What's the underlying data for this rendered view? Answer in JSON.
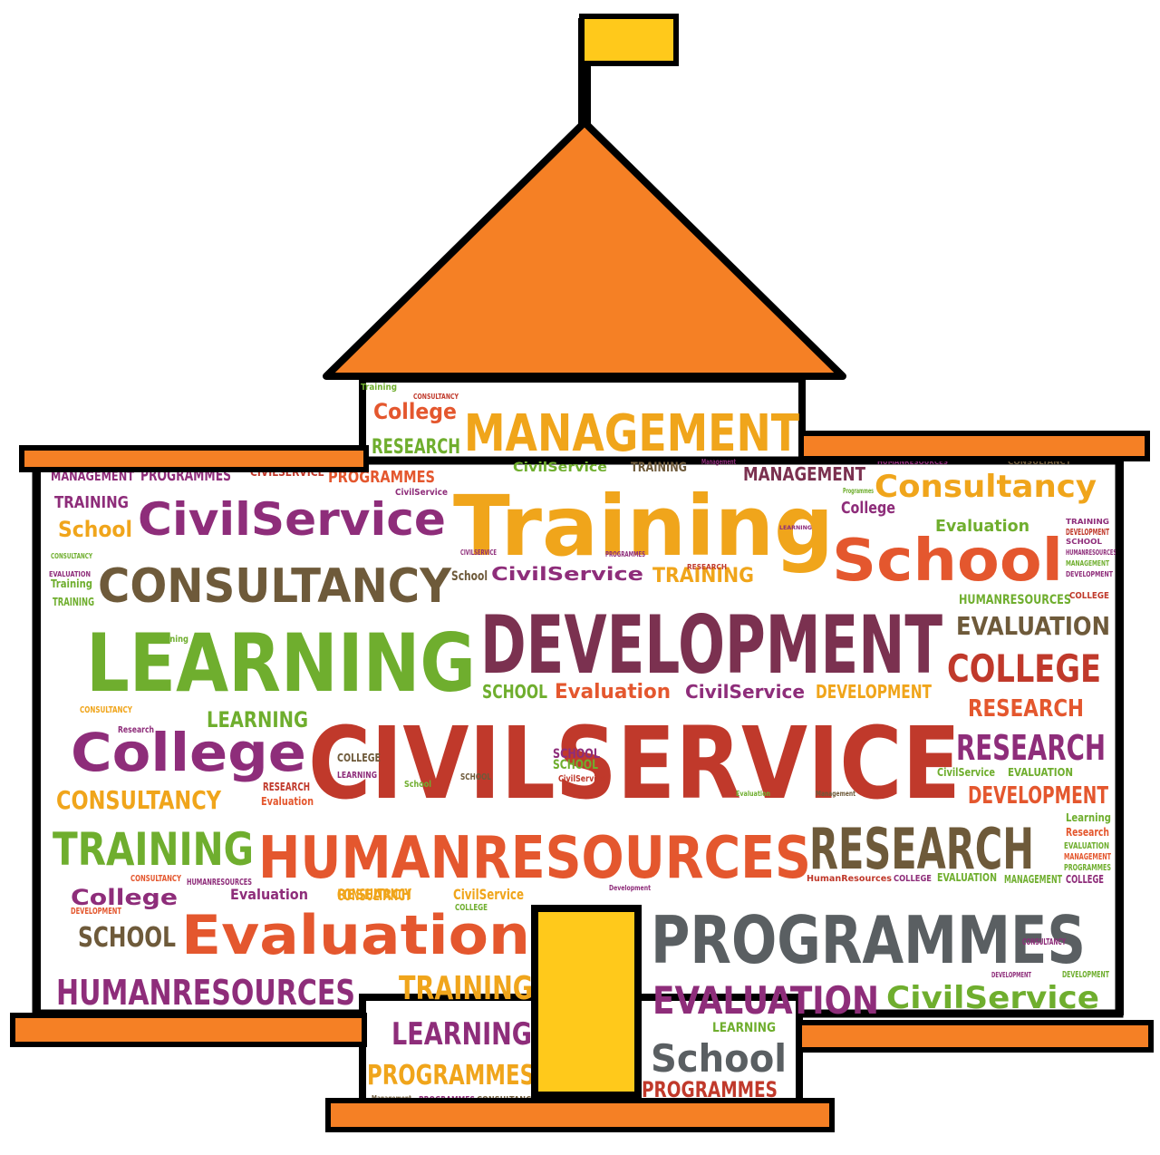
{
  "colors": {
    "orange": "#F58025",
    "yellow": "#FFC91B",
    "outline": "#000000",
    "word_palette": [
      "#F0A51B",
      "#C0392B",
      "#8E2D7A",
      "#6FAE2E",
      "#6E5A3A",
      "#E4572E",
      "#5A5F62"
    ]
  },
  "words": [
    {
      "text": "Training",
      "color": "#F0A51B"
    },
    {
      "text": "CIVILSERVICE",
      "color": "#C0392B"
    },
    {
      "text": "DEVELOPMENT",
      "color": "#7B3150"
    },
    {
      "text": "LEARNING",
      "color": "#6FAE2E"
    },
    {
      "text": "HUMANRESOURCES",
      "color": "#E4572E"
    },
    {
      "text": "PROGRAMMES",
      "color": "#5A5F62"
    },
    {
      "text": "MANAGEMENT",
      "color": "#F0A51B"
    },
    {
      "text": "CONSULTANCY",
      "color": "#6E5A3A"
    },
    {
      "text": "School",
      "color": "#E4572E"
    },
    {
      "text": "CivilService",
      "color": "#8E2D7A"
    },
    {
      "text": "College",
      "color": "#8E2D7A"
    },
    {
      "text": "Evaluation",
      "color": "#E4572E"
    },
    {
      "text": "RESEARCH",
      "color": "#6E5A3A"
    },
    {
      "text": "TRAINING",
      "color": "#6FAE2E"
    },
    {
      "text": "COLLEGE",
      "color": "#C0392B"
    },
    {
      "text": "RESEARCH",
      "color": "#8E2D7A"
    },
    {
      "text": "EVALUATION",
      "color": "#8E2D7A"
    },
    {
      "text": "HUMANRESOURCES",
      "color": "#8E2D7A"
    },
    {
      "text": "CivilService",
      "color": "#6FAE2E"
    },
    {
      "text": "Consultancy",
      "color": "#F0A51B"
    },
    {
      "text": "College",
      "color": "#E4572E"
    },
    {
      "text": "School",
      "color": "#5A5F62"
    },
    {
      "text": "TRAINING",
      "color": "#F0A51B"
    },
    {
      "text": "LEARNING",
      "color": "#8E2D7A"
    },
    {
      "text": "PROGRAMMES",
      "color": "#F0A51B"
    },
    {
      "text": "CONSULTANCY",
      "color": "#F0A51B"
    },
    {
      "text": "SCHOOL",
      "color": "#6E5A3A"
    },
    {
      "text": "EVALUATION",
      "color": "#6E5A3A"
    },
    {
      "text": "RESEARCH",
      "color": "#E4572E"
    },
    {
      "text": "DEVELOPMENT",
      "color": "#E4572E"
    },
    {
      "text": "College",
      "color": "#8E2D7A"
    },
    {
      "text": "RESEARCH",
      "color": "#6FAE2E"
    },
    {
      "text": "MANAGEMENT",
      "color": "#7B3150"
    },
    {
      "text": "CivilService",
      "color": "#8E2D7A"
    },
    {
      "text": "TRAINING",
      "color": "#F0A51B"
    },
    {
      "text": "Evaluation",
      "color": "#6FAE2E"
    },
    {
      "text": "LEARNING",
      "color": "#6FAE2E"
    },
    {
      "text": "CivilService",
      "color": "#8E2D7A"
    },
    {
      "text": "Evaluation",
      "color": "#E4572E"
    },
    {
      "text": "SCHOOL",
      "color": "#6FAE2E"
    },
    {
      "text": "DEVELOPMENT",
      "color": "#F0A51B"
    },
    {
      "text": "CONSULTANCY",
      "color": "#F0A51B"
    },
    {
      "text": "College",
      "color": "#8E2D7A"
    },
    {
      "text": "School",
      "color": "#F0A51B"
    },
    {
      "text": "TRAINING",
      "color": "#8E2D7A"
    },
    {
      "text": "PROGRAMMES",
      "color": "#8E2D7A"
    },
    {
      "text": "CIVILSERVICE",
      "color": "#C0392B"
    },
    {
      "text": "PROGRAMMES",
      "color": "#E4572E"
    },
    {
      "text": "PROGRAMMES",
      "color": "#C0392B"
    },
    {
      "text": "MANAGEMENT",
      "color": "#8E2D7A"
    },
    {
      "text": "HUMANRESOURCES",
      "color": "#8E2D7A"
    },
    {
      "text": "Evaluation",
      "color": "#8E2D7A"
    },
    {
      "text": "RESEARCH",
      "color": "#F0A51B"
    },
    {
      "text": "CivilService",
      "color": "#F0A51B"
    },
    {
      "text": "LEARNING",
      "color": "#6FAE2E"
    },
    {
      "text": "SCHOOL",
      "color": "#6FAE2E"
    },
    {
      "text": "CivilService",
      "color": "#6FAE2E"
    },
    {
      "text": "TRAINING",
      "color": "#6E5A3A"
    },
    {
      "text": "School",
      "color": "#6E5A3A"
    },
    {
      "text": "Training",
      "color": "#6FAE2E"
    },
    {
      "text": "TRAINING",
      "color": "#6FAE2E"
    },
    {
      "text": "COLLEGE",
      "color": "#6E5A3A"
    },
    {
      "text": "SCHOOL",
      "color": "#8E2D7A"
    },
    {
      "text": "HUMANRESOURCES",
      "color": "#6FAE2E"
    },
    {
      "text": "CivilService",
      "color": "#6FAE2E"
    },
    {
      "text": "EVALUATION",
      "color": "#6FAE2E"
    },
    {
      "text": "CONSULTANCY",
      "color": "#F0A51B"
    },
    {
      "text": "DEVELOPMENT",
      "color": "#E4572E"
    },
    {
      "text": "Learning",
      "color": "#6FAE2E"
    },
    {
      "text": "Research",
      "color": "#E4572E"
    },
    {
      "text": "EVALUATION",
      "color": "#6FAE2E"
    },
    {
      "text": "MANAGEMENT",
      "color": "#E4572E"
    },
    {
      "text": "PROGRAMMES",
      "color": "#6FAE2E"
    },
    {
      "text": "HumanResources",
      "color": "#C0392B"
    },
    {
      "text": "COLLEGE",
      "color": "#8E2D7A"
    },
    {
      "text": "EVALUATION",
      "color": "#6FAE2E"
    },
    {
      "text": "MANAGEMENT",
      "color": "#6FAE2E"
    },
    {
      "text": "COLLEGE",
      "color": "#8E2D7A"
    },
    {
      "text": "CONSULTANCY",
      "color": "#8E2D7A"
    },
    {
      "text": "DEVELOPMENT",
      "color": "#8E2D7A"
    },
    {
      "text": "DEVELOPMENT",
      "color": "#6FAE2E"
    },
    {
      "text": "CONSULTANCY",
      "color": "#E4572E"
    },
    {
      "text": "DEVELOPMENT",
      "color": "#C0392B"
    },
    {
      "text": "Research",
      "color": "#8E2D7A"
    },
    {
      "text": "LEARNING",
      "color": "#8E2D7A"
    },
    {
      "text": "COLLEGE",
      "color": "#C0392B"
    },
    {
      "text": "SCHOOL",
      "color": "#6E5A3A"
    },
    {
      "text": "School",
      "color": "#6FAE2E"
    },
    {
      "text": "CivilService",
      "color": "#C0392B"
    },
    {
      "text": "RESEARCH",
      "color": "#C0392B"
    },
    {
      "text": "Evaluation",
      "color": "#E4572E"
    },
    {
      "text": "Training",
      "color": "#6FAE2E"
    },
    {
      "text": "Management",
      "color": "#8E2D7A"
    },
    {
      "text": "Programmes",
      "color": "#6FAE2E"
    },
    {
      "text": "CivilService",
      "color": "#8E2D7A"
    },
    {
      "text": "CONSULTANCY",
      "color": "#C0392B"
    },
    {
      "text": "Training",
      "color": "#6FAE2E"
    },
    {
      "text": "Development",
      "color": "#8E2D7A"
    },
    {
      "text": "COLLEGE",
      "color": "#6FAE2E"
    },
    {
      "text": "Management",
      "color": "#6E5A3A"
    },
    {
      "text": "PROGRAMMES",
      "color": "#8E2D7A"
    },
    {
      "text": "CONSULTANCY",
      "color": "#6E5A3A"
    },
    {
      "text": "HUMANRESOURCES",
      "color": "#8E2D7A"
    },
    {
      "text": "CONSULTANCY",
      "color": "#6E5A3A"
    },
    {
      "text": "TRAINING",
      "color": "#8E2D7A"
    },
    {
      "text": "SCHOOL",
      "color": "#8E2D7A"
    },
    {
      "text": "MANAGEMENT",
      "color": "#6FAE2E"
    },
    {
      "text": "HUMANRESOURCES",
      "color": "#8E2D7A"
    },
    {
      "text": "CIVILSERVICE",
      "color": "#8E2D7A"
    },
    {
      "text": "PROGRAMMES",
      "color": "#8E2D7A"
    },
    {
      "text": "DEVELOPMENT",
      "color": "#8E2D7A"
    },
    {
      "text": "CONSULTANCY",
      "color": "#6FAE2E"
    },
    {
      "text": "EVALUATION",
      "color": "#8E2D7A"
    },
    {
      "text": "LEARNING",
      "color": "#8E2D7A"
    },
    {
      "text": "RESEARCH",
      "color": "#C0392B"
    },
    {
      "text": "Evaluation",
      "color": "#6FAE2E"
    },
    {
      "text": "Management",
      "color": "#6E5A3A"
    }
  ]
}
